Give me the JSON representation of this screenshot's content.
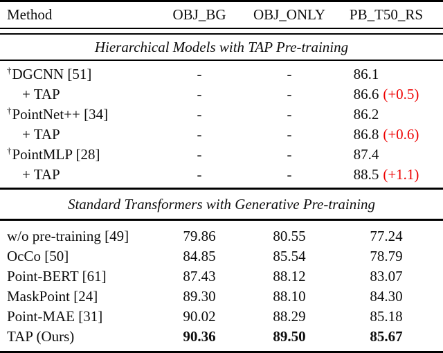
{
  "table": {
    "columns": [
      "Method",
      "OBJ_BG",
      "OBJ_ONLY",
      "PB_T50_RS"
    ],
    "colors": {
      "delta_red": "#ee0000",
      "text": "#0d0d0d",
      "rule": "#000000"
    },
    "sections": [
      {
        "title": "Hierarchical Models with TAP Pre-training",
        "align_deltas": true,
        "rows": [
          {
            "method": "DGCNN [51]",
            "dagger": true,
            "indent": false,
            "values": [
              "-",
              "-",
              "86.1"
            ],
            "delta": null,
            "bold_values": false
          },
          {
            "method": "+ TAP",
            "dagger": false,
            "indent": true,
            "values": [
              "-",
              "-",
              "86.6"
            ],
            "delta": "(+0.5)",
            "bold_values": false
          },
          {
            "method": "PointNet++ [34]",
            "dagger": true,
            "indent": false,
            "values": [
              "-",
              "-",
              "86.2"
            ],
            "delta": null,
            "bold_values": false
          },
          {
            "method": "+ TAP",
            "dagger": false,
            "indent": true,
            "values": [
              "-",
              "-",
              "86.8"
            ],
            "delta": "(+0.6)",
            "bold_values": false
          },
          {
            "method": "PointMLP [28]",
            "dagger": true,
            "indent": false,
            "values": [
              "-",
              "-",
              "87.4"
            ],
            "delta": null,
            "bold_values": false
          },
          {
            "method": "+ TAP",
            "dagger": false,
            "indent": true,
            "values": [
              "-",
              "-",
              "88.5"
            ],
            "delta": "(+1.1)",
            "bold_values": false
          }
        ]
      },
      {
        "title": "Standard Transformers with Generative Pre-training",
        "align_deltas": false,
        "rows": [
          {
            "method": "w/o pre-training [49]",
            "dagger": false,
            "indent": false,
            "values": [
              "79.86",
              "80.55",
              "77.24"
            ],
            "delta": null,
            "bold_values": false
          },
          {
            "method": "OcCo [50]",
            "dagger": false,
            "indent": false,
            "values": [
              "84.85",
              "85.54",
              "78.79"
            ],
            "delta": null,
            "bold_values": false
          },
          {
            "method": "Point-BERT [61]",
            "dagger": false,
            "indent": false,
            "values": [
              "87.43",
              "88.12",
              "83.07"
            ],
            "delta": null,
            "bold_values": false
          },
          {
            "method": "MaskPoint [24]",
            "dagger": false,
            "indent": false,
            "values": [
              "89.30",
              "88.10",
              "84.30"
            ],
            "delta": null,
            "bold_values": false
          },
          {
            "method": "Point-MAE [31]",
            "dagger": false,
            "indent": false,
            "values": [
              "90.02",
              "88.29",
              "85.18"
            ],
            "delta": null,
            "bold_values": false
          },
          {
            "method": "TAP (Ours)",
            "dagger": false,
            "indent": false,
            "values": [
              "90.36",
              "89.50",
              "85.67"
            ],
            "delta": null,
            "bold_values": true
          }
        ]
      }
    ]
  }
}
